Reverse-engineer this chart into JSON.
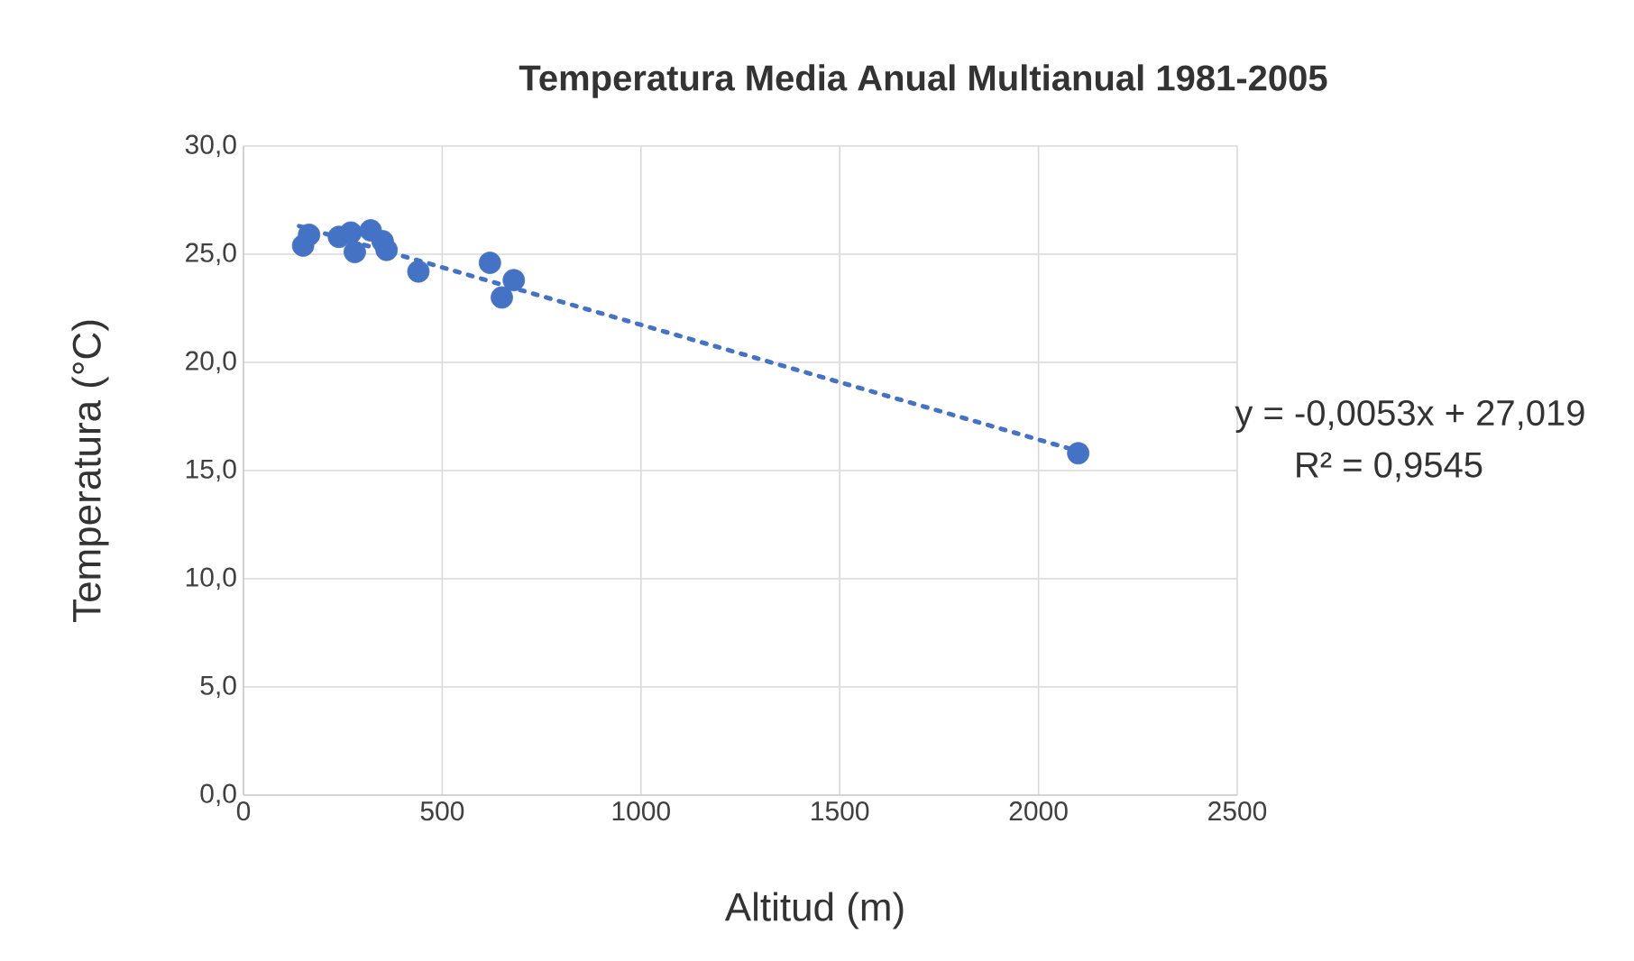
{
  "chart_data": {
    "type": "scatter",
    "title": "Temperatura Media Anual Multianual 1981-2005",
    "xlabel": "Altitud (m)",
    "ylabel": "Temperatura (°C)",
    "annotations": [
      "y = -0,0053x + 27,019",
      "R² = 0,9545"
    ],
    "series": [
      {
        "color": "#4472c4",
        "marker": "circle",
        "x": [
          150,
          165,
          240,
          270,
          280,
          320,
          350,
          360,
          440,
          620,
          650,
          680,
          2100
        ],
        "values": [
          25.4,
          25.9,
          25.8,
          26.0,
          25.1,
          26.1,
          25.6,
          25.2,
          24.2,
          24.6,
          23.0,
          23.8,
          15.8
        ]
      },
      {
        "type": "line",
        "color": "#4472c4",
        "marker": "none",
        "line_style": "dotted",
        "x": [
          140,
          2100
        ],
        "values": [
          26.3,
          15.9
        ]
      }
    ],
    "xlim": [
      0,
      2500
    ],
    "xticks": [
      0,
      500,
      1000,
      1500,
      2000,
      2500
    ],
    "ylim": [
      0,
      30
    ],
    "yticks": [
      {
        "value": 0,
        "label": "0,0"
      },
      {
        "value": 5,
        "label": "5,0"
      },
      {
        "value": 10,
        "label": "10,0"
      },
      {
        "value": 15,
        "label": "15,0"
      },
      {
        "value": 20,
        "label": "20,0"
      },
      {
        "value": 25,
        "label": "25,0"
      },
      {
        "value": 30,
        "label": "30,0"
      }
    ],
    "grid": true
  }
}
